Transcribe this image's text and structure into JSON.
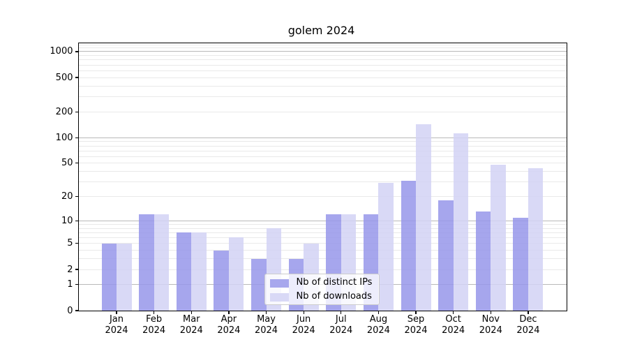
{
  "title": "golem 2024",
  "chart_data": {
    "type": "bar",
    "title": "golem 2024",
    "categories": [
      "Jan 2024",
      "Feb 2024",
      "Mar 2024",
      "Apr 2024",
      "May 2024",
      "Jun 2024",
      "Jul 2024",
      "Aug 2024",
      "Sep 2024",
      "Oct 2024",
      "Nov 2024",
      "Dec 2024"
    ],
    "series": [
      {
        "name": "Nb of distinct IPs",
        "color": "#a7a7ed",
        "values": [
          5,
          12,
          7,
          4,
          3,
          3,
          12,
          12,
          31,
          18,
          13,
          11
        ]
      },
      {
        "name": "Nb of downloads",
        "color": "#d9d9f6",
        "values": [
          5,
          12,
          7,
          6,
          8,
          5,
          12,
          29,
          144,
          113,
          48,
          44
        ]
      }
    ],
    "xlabel": "",
    "ylabel": "",
    "yscale": "log1p",
    "yticks": [
      0,
      1,
      2,
      5,
      10,
      20,
      50,
      100,
      200,
      500,
      1000
    ],
    "ylim": [
      0,
      1250
    ],
    "grid": "horizontal-only, major lines at 1/10/100/1000, minor lines at 2-9 per decade",
    "legend_position": "inside lower-center"
  },
  "legend": {
    "items": [
      {
        "label": "Nb of distinct IPs"
      },
      {
        "label": "Nb of downloads"
      }
    ]
  },
  "colors": {
    "bar_distinct_ips": "#a7a7ed",
    "bar_downloads": "#d9d9f6",
    "grid_major": "#b9b9b9",
    "grid_minor": "#e9e9e9",
    "axis": "#000000",
    "background": "#ffffff"
  }
}
